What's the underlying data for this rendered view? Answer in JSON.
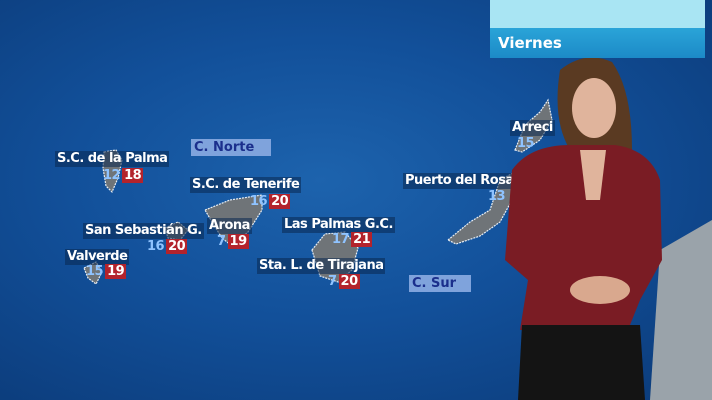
{
  "header": {
    "day": "Viernes"
  },
  "zones": {
    "north": "C. Norte",
    "south": "C. Sur"
  },
  "cities": [
    {
      "name": "S.C. de la Palma",
      "min": "12",
      "max": "18"
    },
    {
      "name": "S.C. de Tenerife",
      "min": "16",
      "max": "20"
    },
    {
      "name": "San Sebastián G.",
      "min": "16",
      "max": "20"
    },
    {
      "name": "Arona",
      "min": "7",
      "max": "19"
    },
    {
      "name": "Las Palmas G.C.",
      "min": "17",
      "max": "21"
    },
    {
      "name": "Valverde",
      "min": "15",
      "max": "19"
    },
    {
      "name": "Sta. L. de Tirajana",
      "min": "7",
      "max": "20"
    },
    {
      "name": "Puerto del Rosar",
      "min": "13"
    },
    {
      "name": "Arreci",
      "min": "15"
    }
  ],
  "colors": {
    "sea": "#12509a",
    "max_temp_bg": "#b3232c",
    "min_temp": "#8fc3ff",
    "banner": "#2aa4d8"
  }
}
